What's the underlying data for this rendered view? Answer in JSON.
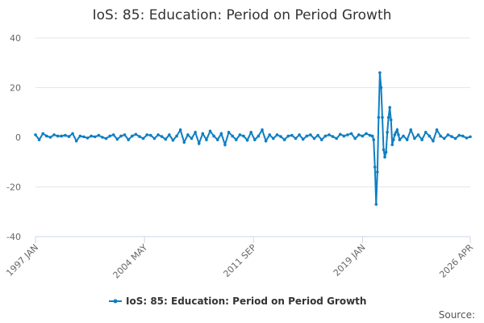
{
  "chart_data": {
    "type": "line",
    "title": "IoS: 85: Education: Period on Period Growth",
    "source": "Source:",
    "x": [
      1997,
      1997.25,
      1997.5,
      1997.75,
      1998,
      1998.25,
      1998.5,
      1998.75,
      1999,
      1999.25,
      1999.5,
      1999.75,
      2000,
      2000.25,
      2000.5,
      2000.75,
      2001,
      2001.25,
      2001.5,
      2001.75,
      2002,
      2002.25,
      2002.5,
      2002.75,
      2003,
      2003.25,
      2003.5,
      2003.75,
      2004,
      2004.25,
      2004.5,
      2004.75,
      2005,
      2005.25,
      2005.5,
      2005.75,
      2006,
      2006.25,
      2006.5,
      2006.75,
      2007,
      2007.25,
      2007.5,
      2007.75,
      2008,
      2008.25,
      2008.5,
      2008.75,
      2009,
      2009.25,
      2009.5,
      2009.75,
      2010,
      2010.25,
      2010.5,
      2010.75,
      2011,
      2011.25,
      2011.5,
      2011.75,
      2012,
      2012.25,
      2012.5,
      2012.75,
      2013,
      2013.25,
      2013.5,
      2013.75,
      2014,
      2014.25,
      2014.5,
      2014.75,
      2015,
      2015.25,
      2015.5,
      2015.75,
      2016,
      2016.25,
      2016.5,
      2016.75,
      2017,
      2017.25,
      2017.5,
      2017.75,
      2018,
      2018.25,
      2018.5,
      2018.75,
      2019,
      2019.25,
      2019.5,
      2019.667,
      2019.75,
      2019.833,
      2019.917,
      2020,
      2020.083,
      2020.167,
      2020.25,
      2020.333,
      2020.417,
      2020.5,
      2020.583,
      2020.667,
      2020.75,
      2020.833,
      2020.917,
      2021,
      2021.083,
      2021.167,
      2021.25,
      2021.333,
      2021.417,
      2021.5,
      2021.75,
      2022,
      2022.25,
      2022.5,
      2022.75,
      2023,
      2023.25,
      2023.5,
      2023.75,
      2024,
      2024.25,
      2024.5,
      2024.75,
      2025,
      2025.25,
      2025.5,
      2025.75,
      2026,
      2026.25
    ],
    "series": [
      {
        "name": "IoS: 85: Education: Period on Period Growth",
        "color": "#0e7fc2",
        "values": [
          1,
          -1,
          1.5,
          0.5,
          0,
          1,
          0.5,
          0.5,
          0.8,
          0.3,
          1.5,
          -1.5,
          0.5,
          0.2,
          -0.3,
          0.5,
          0.2,
          0.8,
          0,
          -0.5,
          0.5,
          1,
          -0.8,
          0.5,
          1,
          -1,
          0.5,
          1.2,
          0.3,
          -0.5,
          1,
          0.8,
          -0.5,
          1,
          0.3,
          -0.8,
          1,
          -1.2,
          0.5,
          3,
          -2,
          1,
          -0.5,
          2,
          -2.5,
          1.5,
          -1,
          2.5,
          0.5,
          -1,
          1.5,
          -3,
          2,
          0.5,
          -1,
          1,
          0.5,
          -1.2,
          2,
          -1,
          0.5,
          3,
          -1.5,
          1,
          -0.5,
          1,
          0.3,
          -1,
          0.5,
          0.8,
          -0.5,
          1,
          -0.8,
          0.5,
          1,
          -0.5,
          0.8,
          -1,
          0.5,
          1,
          0.3,
          -0.5,
          1.2,
          0.5,
          1,
          1.5,
          -0.5,
          1,
          0.5,
          1.5,
          0.8,
          0.5,
          -1,
          -12,
          -27,
          -14,
          8,
          26,
          20,
          8,
          -5,
          -8,
          -6,
          2,
          8,
          12,
          7,
          -3,
          -1,
          1,
          2,
          3,
          1,
          -1,
          0.5,
          -1,
          3,
          -0.5,
          1,
          -1,
          2,
          0.5,
          -1.5,
          3,
          0.5,
          -0.5,
          1,
          0.3,
          -0.5,
          0.8,
          0.5,
          -0.3,
          0.2
        ]
      }
    ],
    "xlim": [
      1997,
      2026.25
    ],
    "xticks": [
      {
        "value": 1997,
        "label": "1997 JAN"
      },
      {
        "value": 2004.333,
        "label": "2004 MAY"
      },
      {
        "value": 2011.667,
        "label": "2011 SEP"
      },
      {
        "value": 2019,
        "label": "2019 JAN"
      },
      {
        "value": 2026.25,
        "label": "2026 APR"
      }
    ],
    "ylim": [
      -40,
      40
    ],
    "yticks": [
      -40,
      -20,
      0,
      20,
      40
    ],
    "grid": true
  }
}
